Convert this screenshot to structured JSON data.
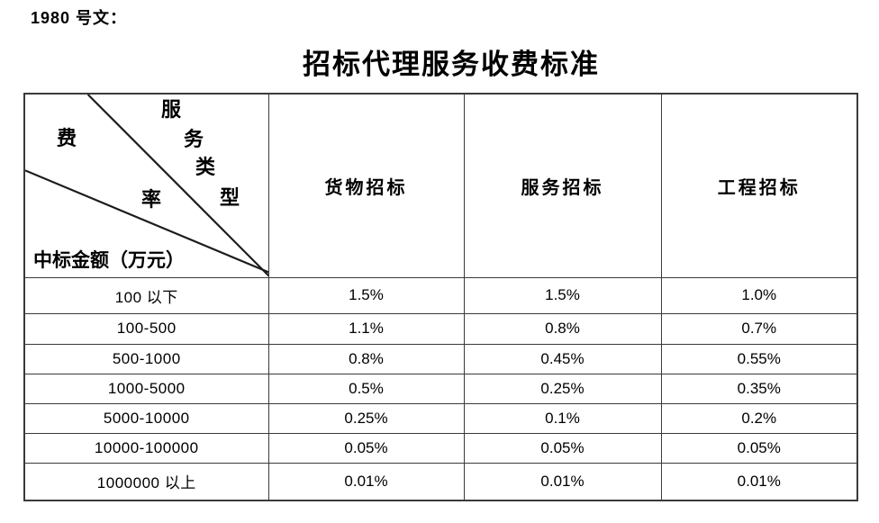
{
  "doc": {
    "ref_label": "1980 号文："
  },
  "title": "招标代理服务收费标准",
  "table": {
    "corner": {
      "fee_char": "费",
      "rate_char": "率",
      "service_type_chars": [
        "服",
        "务",
        "类",
        "型"
      ],
      "row_axis_label": "中标金额（万元）"
    },
    "columns": [
      "货物招标",
      "服务招标",
      "工程招标"
    ],
    "rows": [
      {
        "range": "100 以下",
        "values": [
          "1.5%",
          "1.5%",
          "1.0%"
        ]
      },
      {
        "range": "100-500",
        "values": [
          "1.1%",
          "0.8%",
          "0.7%"
        ]
      },
      {
        "range": "500-1000",
        "values": [
          "0.8%",
          "0.45%",
          "0.55%"
        ]
      },
      {
        "range": "1000-5000",
        "values": [
          "0.5%",
          "0.25%",
          "0.35%"
        ]
      },
      {
        "range": "5000-10000",
        "values": [
          "0.25%",
          "0.1%",
          "0.2%"
        ]
      },
      {
        "range": "10000-100000",
        "values": [
          "0.05%",
          "0.05%",
          "0.05%"
        ]
      },
      {
        "range": "1000000 以上",
        "values": [
          "0.01%",
          "0.01%",
          "0.01%"
        ]
      }
    ]
  },
  "colors": {
    "text": "#000000",
    "border": "#3a3a3a",
    "background": "#ffffff"
  }
}
